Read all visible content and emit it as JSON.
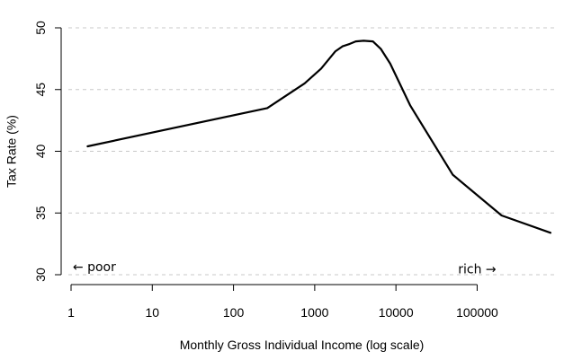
{
  "chart_data": {
    "type": "line",
    "title": "",
    "xlabel": "Monthly Gross Individual Income (log scale)",
    "ylabel": "Tax Rate (%)",
    "xscale": "log10",
    "xlim": [
      1,
      800000
    ],
    "ylim": [
      30,
      50
    ],
    "grid": "horizontal dashed at y tick marks",
    "x_ticks": [
      1,
      10,
      100,
      1000,
      10000,
      100000
    ],
    "x_tick_labels": [
      "1",
      "10",
      "100",
      "1000",
      "10000",
      "100000"
    ],
    "y_ticks": [
      30,
      35,
      40,
      45,
      50
    ],
    "y_tick_labels": [
      "30",
      "35",
      "40",
      "45",
      "50"
    ],
    "series": [
      {
        "name": "Tax Rate",
        "x": [
          1.6,
          260,
          750,
          1200,
          1800,
          2200,
          2700,
          3200,
          4000,
          5200,
          6500,
          8500,
          15000,
          50000,
          200000,
          800000
        ],
        "y": [
          40.4,
          43.5,
          45.5,
          46.7,
          48.1,
          48.5,
          48.7,
          48.9,
          48.95,
          48.9,
          48.3,
          47.1,
          43.7,
          38.1,
          34.8,
          33.4
        ]
      }
    ],
    "annotations": [
      {
        "text": "← poor",
        "x": 1.05,
        "y": 30.3,
        "anchor": "start"
      },
      {
        "text": "rich →",
        "x": 100000,
        "y": 30.1,
        "anchor": "middle"
      }
    ]
  }
}
